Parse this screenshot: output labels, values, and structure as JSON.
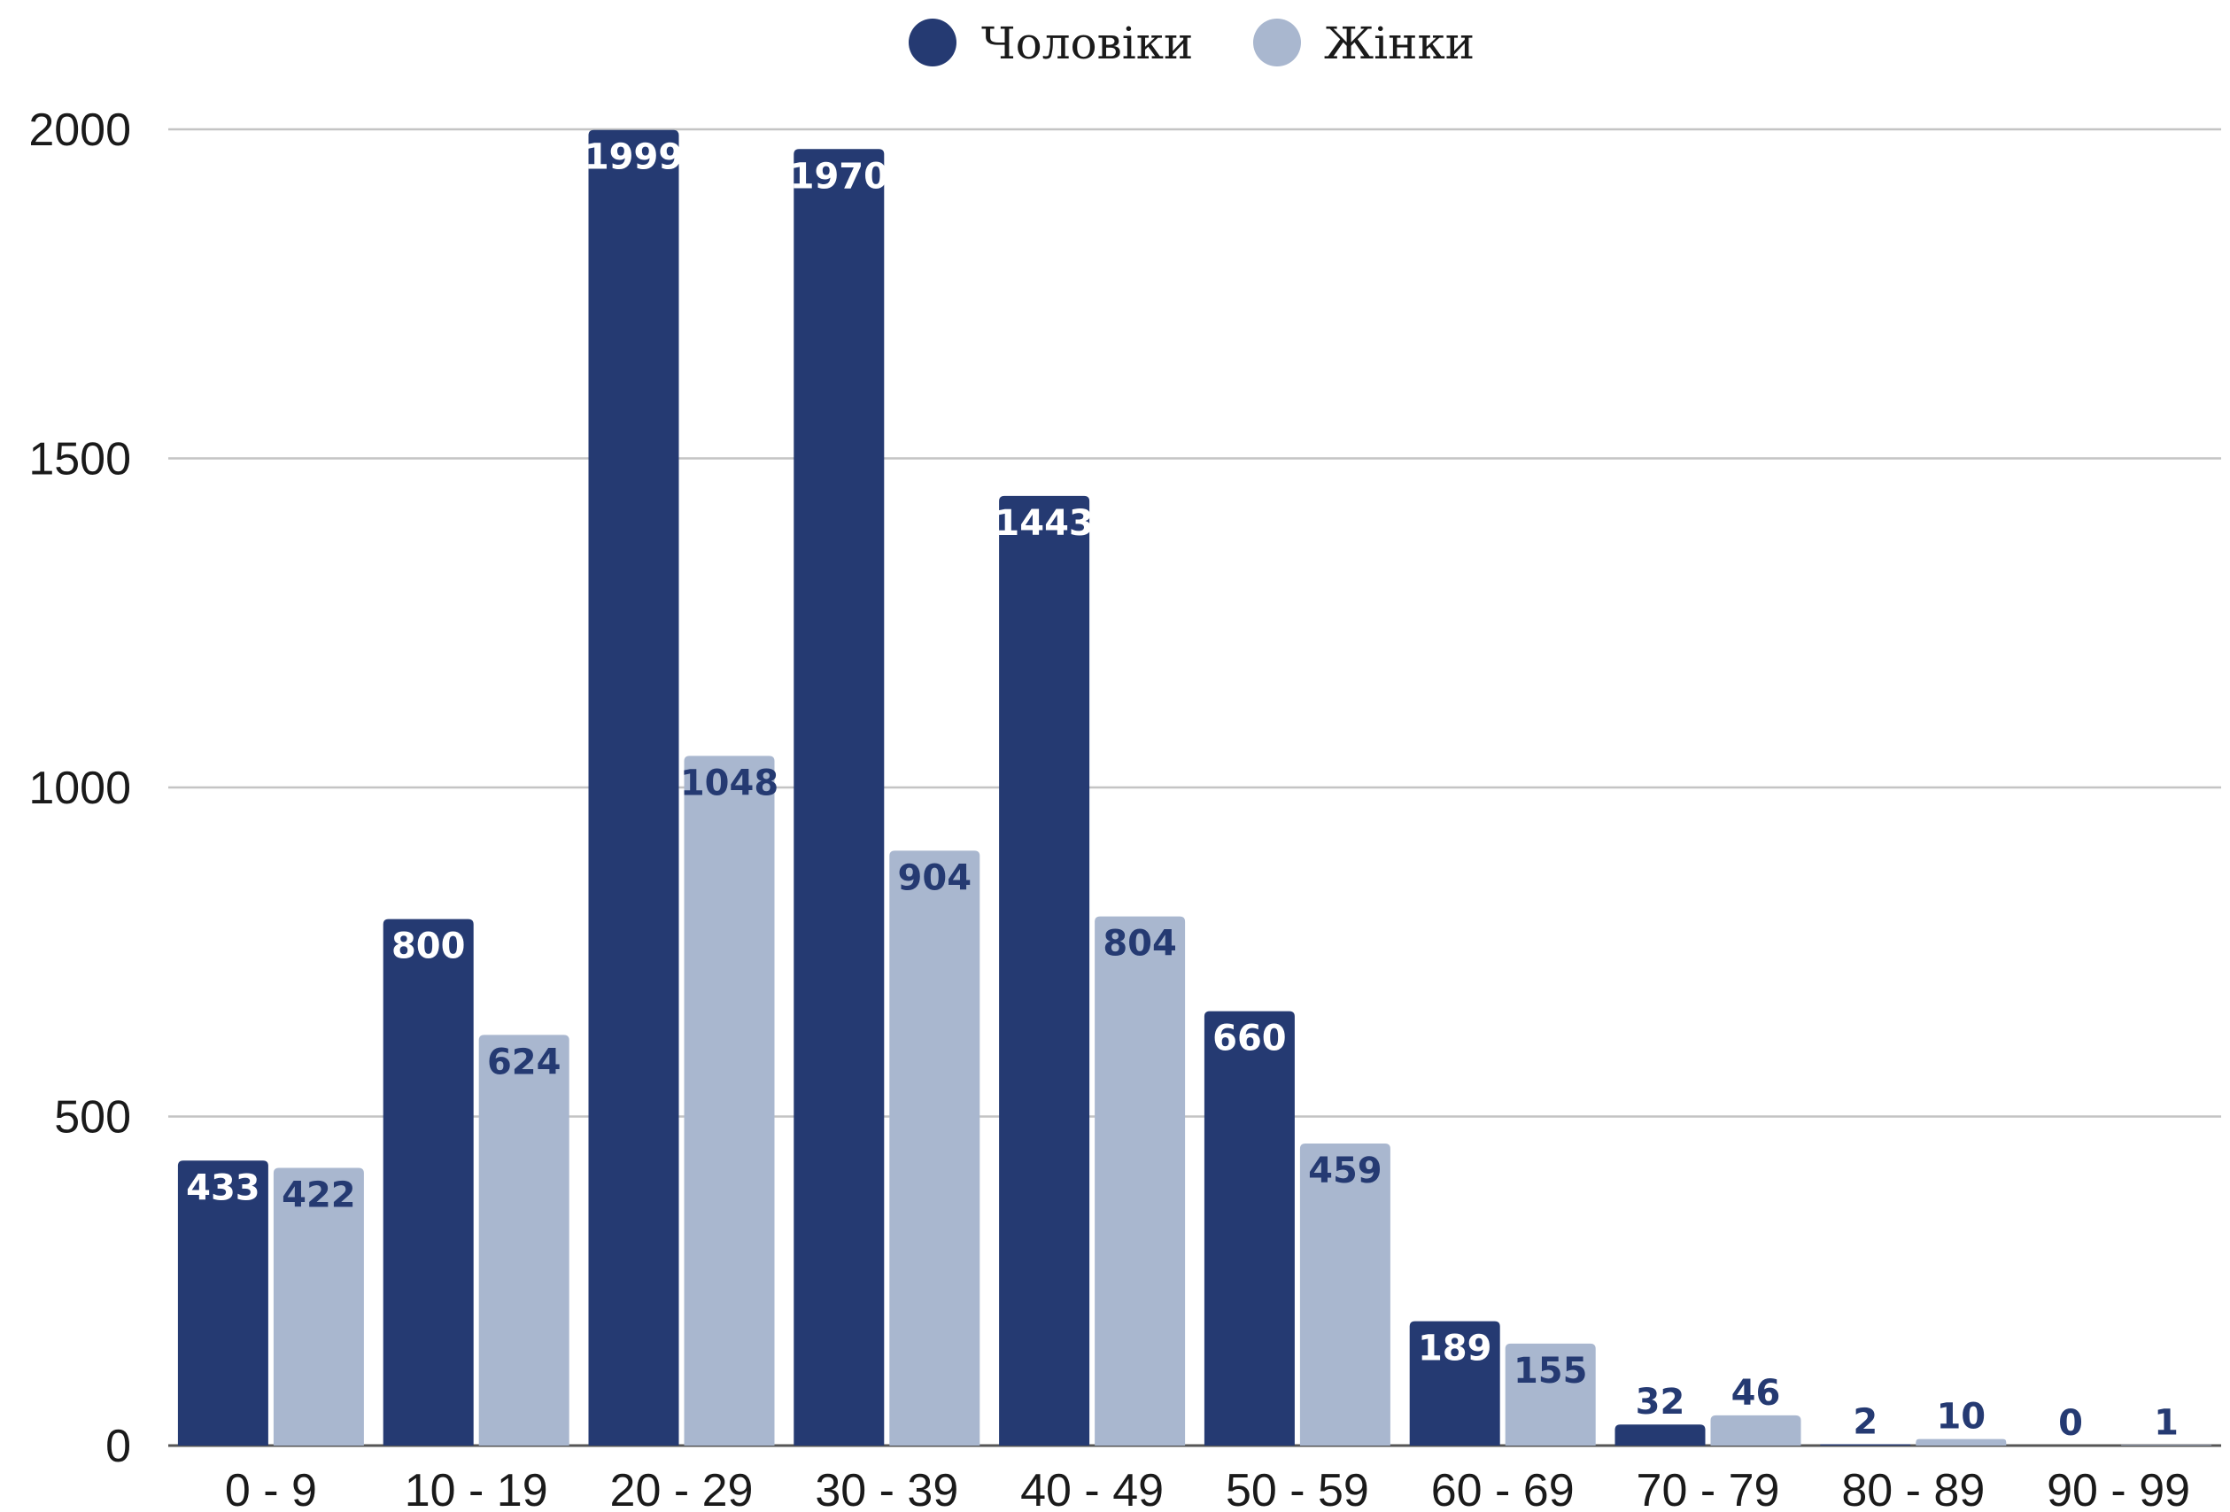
{
  "chart_data": {
    "type": "bar",
    "categories": [
      "0 - 9",
      "10 - 19",
      "20 - 29",
      "30 - 39",
      "40 - 49",
      "50 - 59",
      "60 - 69",
      "70 - 79",
      "80 - 89",
      "90 - 99"
    ],
    "series": [
      {
        "name": "Чоловіки",
        "color": "#253a72",
        "label_color": "#ffffff",
        "values": [
          433,
          800,
          1999,
          1970,
          1443,
          660,
          189,
          32,
          2,
          0
        ]
      },
      {
        "name": "Жінки",
        "color": "#a9b7cf",
        "label_color": "#253a72",
        "values": [
          422,
          624,
          1048,
          904,
          804,
          459,
          155,
          46,
          10,
          1
        ]
      }
    ],
    "yticks": [
      0,
      500,
      1000,
      1500,
      2000
    ],
    "ylim": [
      0,
      2000
    ],
    "title": "",
    "xlabel": "",
    "ylabel": "",
    "grid": true,
    "legend_position": "top-center",
    "data_labels": true
  }
}
